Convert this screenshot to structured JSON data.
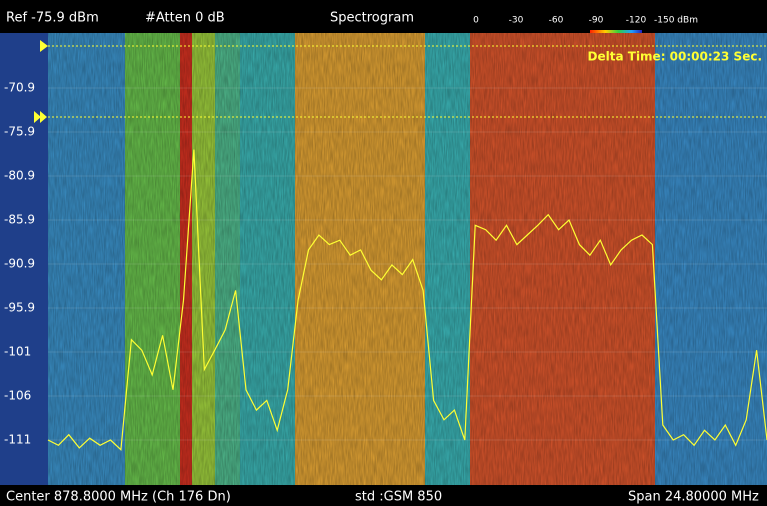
{
  "header": {
    "ref": "Ref -75.9 dBm",
    "atten": "#Atten 0 dB",
    "mode": "Spectrogram",
    "scale_labels": [
      "0",
      "-30",
      "-60",
      "-90",
      "-120",
      "-150 dBm"
    ]
  },
  "annotation": "Delta Time: 00:00:23 Sec.",
  "footer": {
    "center": "Center 878.8000 MHz (Ch 176 Dn)",
    "std": "std :GSM 850",
    "span": "Span 24.80000 MHz"
  },
  "chart_data": {
    "type": "line",
    "color": "#ffff33",
    "grid": true,
    "ylim": [
      -115.9,
      -65.9
    ],
    "yticks": [
      -70.9,
      -75.9,
      -80.9,
      -85.9,
      -90.9,
      -95.9,
      {
        "value": -100.9,
        "label": "-101"
      },
      {
        "value": -105.9,
        "label": "-106"
      },
      {
        "value": -110.9,
        "label": "-111"
      }
    ],
    "values": [
      -110.9,
      -111.5,
      -110.3,
      -111.8,
      -110.7,
      -111.5,
      -110.9,
      -112.0,
      -99.5,
      -100.7,
      -103.5,
      -99.0,
      -105.2,
      -95.0,
      -77.9,
      -102.9,
      -100.7,
      -98.4,
      -93.9,
      -105.2,
      -107.5,
      -106.4,
      -109.8,
      -105.2,
      -95.0,
      -89.3,
      -87.6,
      -88.7,
      -88.2,
      -89.9,
      -89.3,
      -91.6,
      -92.7,
      -91.0,
      -92.1,
      -90.4,
      -93.9,
      -106.4,
      -108.6,
      -107.5,
      -110.9,
      -86.5,
      -87.0,
      -88.2,
      -86.5,
      -88.7,
      -87.6,
      -86.5,
      -85.3,
      -87.0,
      -85.9,
      -88.7,
      -89.9,
      -88.2,
      -91.0,
      -89.3,
      -88.2,
      -87.6,
      -88.7,
      -109.2,
      -110.9,
      -110.3,
      -111.5,
      -109.8,
      -110.9,
      -109.2,
      -111.5,
      -108.6,
      -100.7,
      -110.9
    ]
  }
}
